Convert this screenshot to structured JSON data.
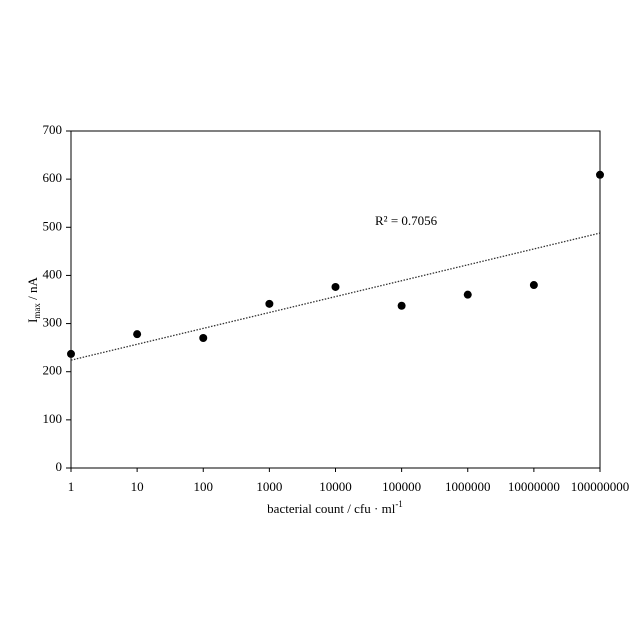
{
  "chart_data": {
    "type": "scatter",
    "xlabel": {
      "text": "bacterial count / cfu · ml",
      "sup": "-1"
    },
    "ylabel": {
      "main": "I",
      "sub": "max",
      "rest": " / nA"
    },
    "annotation": "R² = 0.7056",
    "x": [
      1,
      10,
      100,
      1000,
      10000,
      100000,
      1000000,
      10000000,
      100000000
    ],
    "series": [
      {
        "color": "#000000",
        "values": [
          237,
          278,
          270,
          341,
          376,
          337,
          360,
          380,
          609
        ]
      }
    ],
    "trendline": {
      "x": [
        1,
        100000000
      ],
      "values": [
        224,
        488
      ],
      "color": "#333333"
    },
    "xscale": "log",
    "xlim": [
      1,
      100000000
    ],
    "xticks": [
      1,
      10,
      100,
      1000,
      10000,
      100000,
      1000000,
      10000000,
      100000000
    ],
    "ylim": [
      0,
      700
    ],
    "yticks": [
      0,
      100,
      200,
      300,
      400,
      500,
      600,
      700
    ],
    "grid": false
  }
}
